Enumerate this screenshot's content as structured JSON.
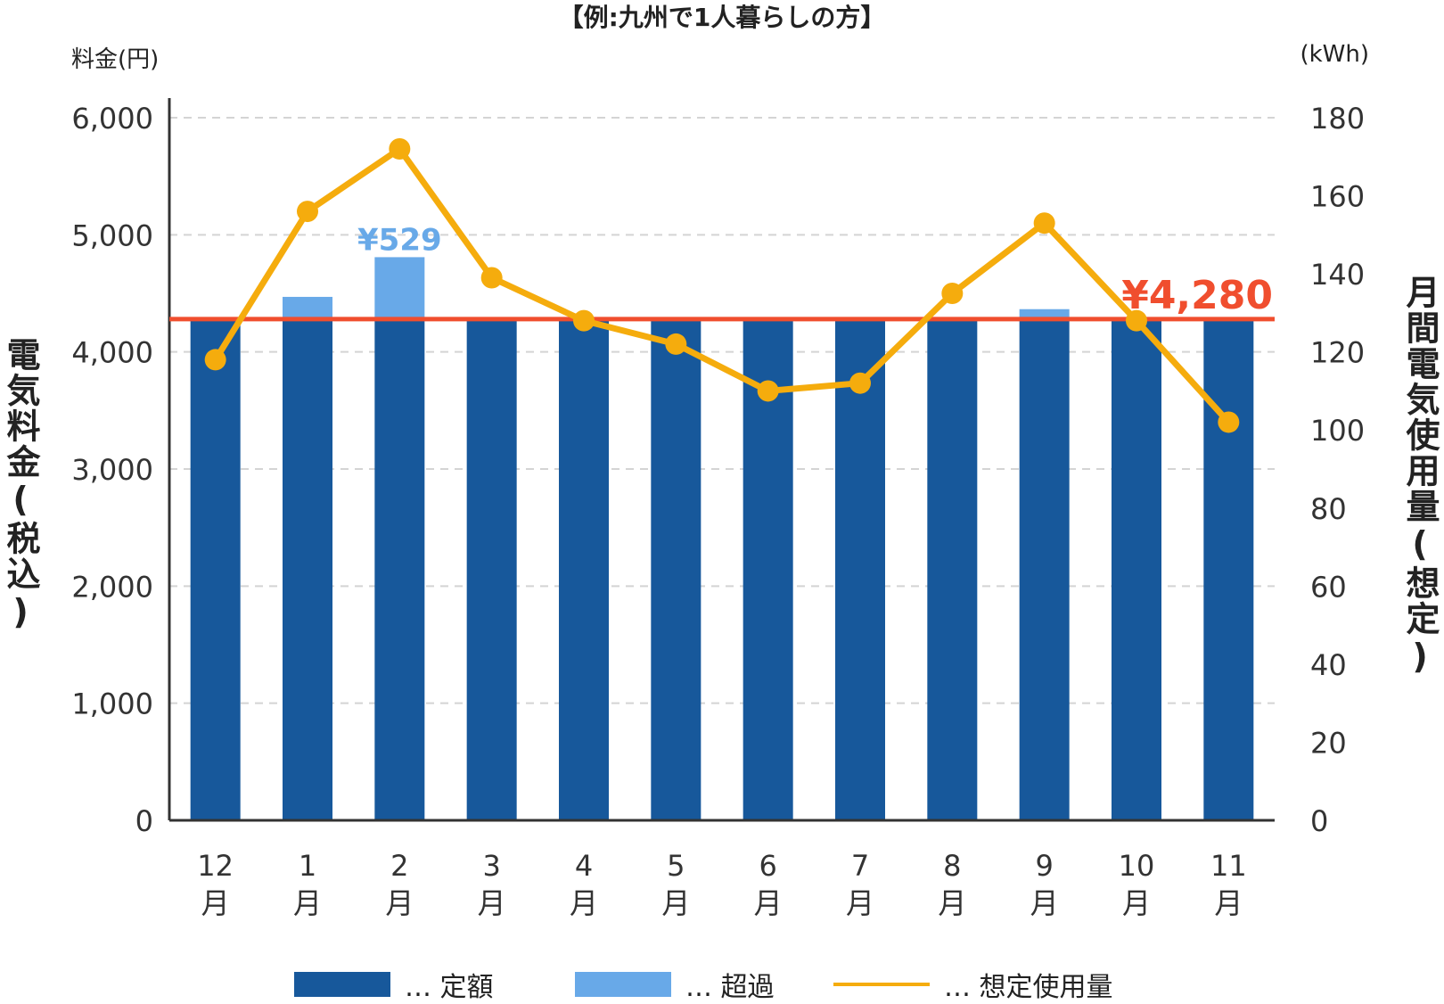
{
  "chart_data": {
    "type": "bar",
    "title": "【例:九州で1人暮らしの方】",
    "y_left_unit": "料金(円)",
    "y_right_unit": "(kWh)",
    "ylabel_left": "電気料金(税込)",
    "ylabel_right": "月間電気使用量(想定)",
    "categories": [
      {
        "num": "12",
        "suffix": "月"
      },
      {
        "num": "1",
        "suffix": "月"
      },
      {
        "num": "2",
        "suffix": "月"
      },
      {
        "num": "3",
        "suffix": "月"
      },
      {
        "num": "4",
        "suffix": "月"
      },
      {
        "num": "5",
        "suffix": "月"
      },
      {
        "num": "6",
        "suffix": "月"
      },
      {
        "num": "7",
        "suffix": "月"
      },
      {
        "num": "8",
        "suffix": "月"
      },
      {
        "num": "9",
        "suffix": "月"
      },
      {
        "num": "10",
        "suffix": "月"
      },
      {
        "num": "11",
        "suffix": "月"
      }
    ],
    "ylim_left": [
      0,
      6000
    ],
    "ylim_right": [
      0,
      180
    ],
    "yticks_left": [
      "0",
      "1,000",
      "2,000",
      "3,000",
      "4,000",
      "5,000",
      "6,000"
    ],
    "yticks_right": [
      "0",
      "20",
      "40",
      "60",
      "80",
      "100",
      "120",
      "140",
      "160",
      "180"
    ],
    "series": [
      {
        "name": "定額",
        "kind": "bar",
        "color": "#17589b",
        "values": [
          4280,
          4280,
          4280,
          4280,
          4280,
          4280,
          4280,
          4280,
          4280,
          4280,
          4280,
          4280
        ]
      },
      {
        "name": "超過",
        "kind": "bar-stacked",
        "color": "#68a9e8",
        "values": [
          0,
          190,
          529,
          0,
          0,
          0,
          0,
          0,
          0,
          85,
          0,
          0
        ]
      },
      {
        "name": "想定使用量",
        "kind": "line",
        "axis": "right",
        "color": "#f5ac0d",
        "values": [
          118,
          156,
          172,
          139,
          128,
          122,
          110,
          112,
          135,
          153,
          128,
          102
        ]
      }
    ],
    "reference_line": {
      "value": 4280,
      "label": "¥4,280",
      "color": "#f04e2e"
    },
    "annotations": [
      {
        "category_index": 2,
        "label": "¥529",
        "color": "#68a9e8"
      }
    ],
    "legend_position": "bottom",
    "legend": [
      {
        "label": "… 定額",
        "color": "#17589b",
        "shape": "box"
      },
      {
        "label": "… 超過",
        "color": "#68a9e8",
        "shape": "box"
      },
      {
        "label": "… 想定使用量",
        "color": "#f5ac0d",
        "shape": "line"
      }
    ],
    "grid": true
  }
}
